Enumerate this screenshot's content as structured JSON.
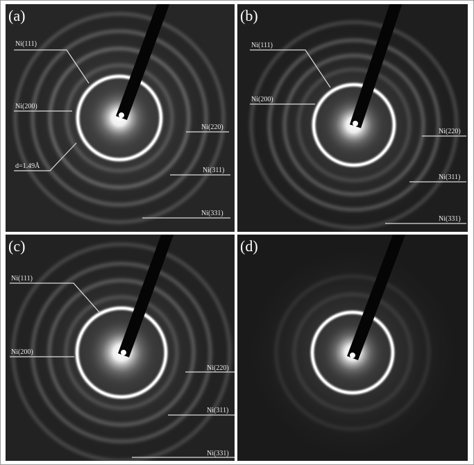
{
  "panels": [
    {
      "label": "(a)",
      "annotations": [
        "Ni(111)",
        "Ni(200)",
        "Ni(220)",
        "d=1.49Å",
        "Ni(311)",
        "Ni(331)"
      ]
    },
    {
      "label": "(b)",
      "annotations": [
        "Ni(111)",
        "Ni(200)",
        "Ni(220)",
        "Ni(311)",
        "Ni(331)"
      ]
    },
    {
      "label": "(c)",
      "annotations": [
        "Ni(111)",
        "Ni(200)",
        "Ni(220)",
        "Ni(311)",
        "Ni(331)"
      ]
    },
    {
      "label": "(d)",
      "annotations": []
    }
  ]
}
